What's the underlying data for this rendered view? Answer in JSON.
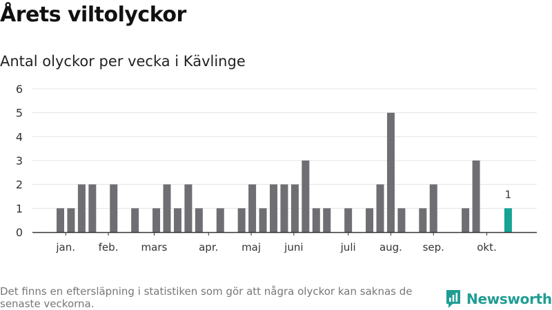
{
  "title": "Årets viltolyckor",
  "subtitle": "Antal olyckor per vecka i Kävlinge",
  "footnote": "Det finns en eftersläpning i statistiken som gör att några olyckor kan saknas de senaste veckorna.",
  "brand": {
    "name": "Newsworthy",
    "icon": "newsworthy-logo-icon"
  },
  "colors": {
    "bar": "#6f6e73",
    "highlight": "#16a394",
    "grid": "#e3e3e3",
    "axis": "#333333"
  },
  "chart_data": {
    "type": "bar",
    "title": "Antal olyckor per vecka i Kävlinge",
    "xlabel": "",
    "ylabel": "",
    "ylim": [
      0,
      6
    ],
    "yticks": [
      0,
      1,
      2,
      3,
      4,
      5,
      6
    ],
    "grid": true,
    "weeks": [
      1,
      2,
      3,
      4,
      5,
      6,
      7,
      8,
      9,
      10,
      11,
      12,
      13,
      14,
      15,
      16,
      17,
      18,
      19,
      20,
      21,
      22,
      23,
      24,
      25,
      26,
      27,
      28,
      29,
      30,
      31,
      32,
      33,
      34,
      35,
      36,
      37,
      38,
      39,
      40,
      41,
      42,
      43,
      44
    ],
    "values": [
      1,
      1,
      2,
      2,
      0,
      2,
      0,
      1,
      0,
      1,
      2,
      1,
      2,
      1,
      0,
      1,
      0,
      1,
      2,
      1,
      2,
      2,
      2,
      3,
      1,
      1,
      0,
      1,
      0,
      1,
      2,
      5,
      1,
      0,
      1,
      2,
      0,
      0,
      1,
      3,
      0,
      0,
      1,
      0
    ],
    "highlight_index": 42,
    "highlight_label": "1",
    "month_labels": [
      {
        "label": "jan.",
        "week": 1.5
      },
      {
        "label": "feb.",
        "week": 5.5
      },
      {
        "label": "mars",
        "week": 9.8
      },
      {
        "label": "apr.",
        "week": 14.9
      },
      {
        "label": "maj",
        "week": 18.9
      },
      {
        "label": "juni",
        "week": 22.9
      },
      {
        "label": "juli",
        "week": 28
      },
      {
        "label": "aug.",
        "week": 32
      },
      {
        "label": "sep.",
        "week": 36
      },
      {
        "label": "okt.",
        "week": 41
      }
    ]
  }
}
